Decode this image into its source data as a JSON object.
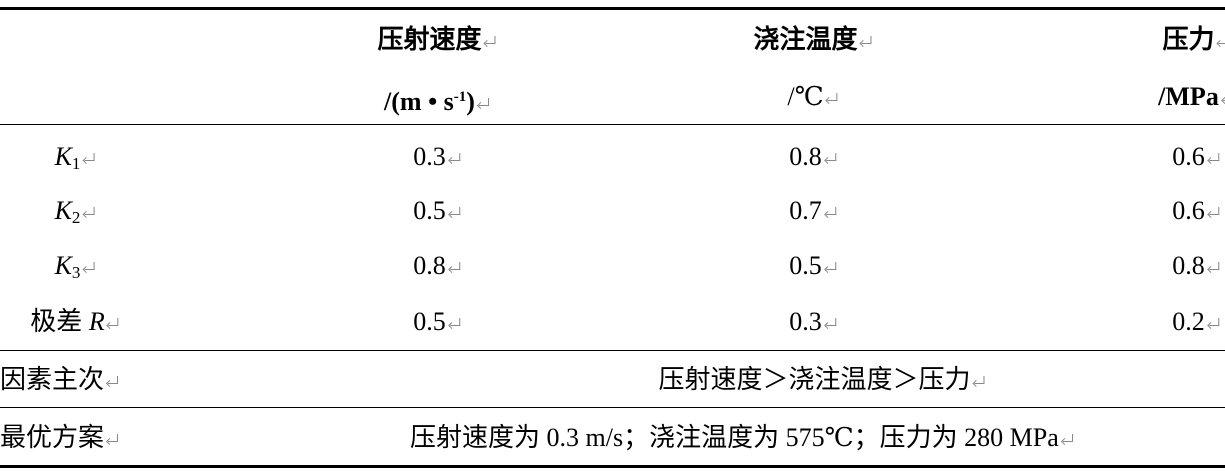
{
  "table": {
    "header": [
      {
        "name": "压射速度",
        "unit": [
          "/(m • s",
          "-1",
          ")"
        ]
      },
      {
        "name": "浇注温度",
        "unit": [
          "/℃"
        ]
      },
      {
        "name": "压力",
        "unit": [
          "/MPa"
        ]
      }
    ],
    "rows": [
      {
        "label": {
          "italic": "K",
          "sub": "1"
        },
        "values": [
          0.3,
          0.8,
          0.6
        ]
      },
      {
        "label": {
          "italic": "K",
          "sub": "2"
        },
        "values": [
          0.5,
          0.7,
          0.6
        ]
      },
      {
        "label": {
          "italic": "K",
          "sub": "3"
        },
        "values": [
          0.8,
          0.5,
          0.8
        ]
      },
      {
        "label": {
          "text": "极差 ",
          "italic": "R"
        },
        "values": [
          0.5,
          0.3,
          0.2
        ]
      }
    ],
    "factor_order": {
      "label": "因素主次",
      "text": "压射速度＞浇注温度＞压力"
    },
    "optimal": {
      "label": "最优方案",
      "text": "压射速度为 0.3 m/s；浇注温度为 575℃；压力为 280 MPa"
    }
  }
}
